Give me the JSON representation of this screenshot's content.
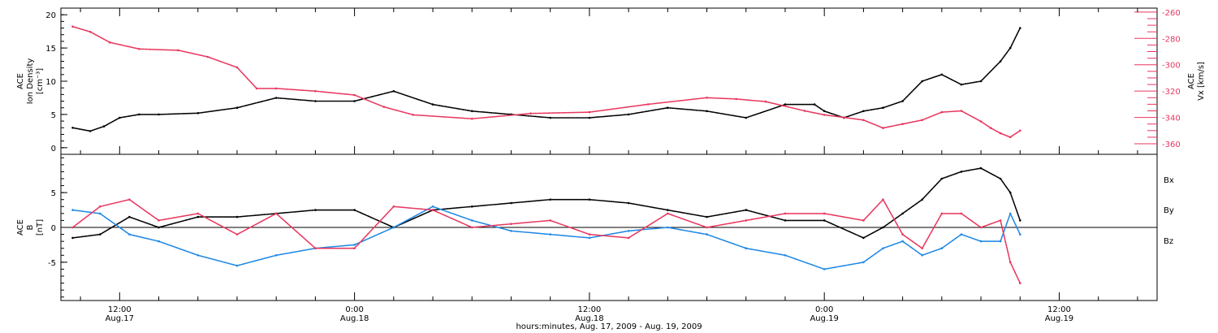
{
  "figure": {
    "xlabel": "hours:minutes, Aug. 17, 2009 - Aug. 19, 2009"
  },
  "colors": {
    "black": "#000000",
    "pink": "#e8375f",
    "blue": "#1e88e5"
  },
  "chart_data": [
    {
      "type": "scatter",
      "panel": "top",
      "ylabel_lines": [
        "ACE",
        "Ion Density",
        "[cm⁻³]"
      ],
      "ylim": [
        -1,
        21
      ],
      "yticks": [
        "0",
        "5",
        "10",
        "15",
        "20"
      ],
      "y2label_lines": [
        "ACE",
        "Vx [km/s]"
      ],
      "y2lim": [
        -368,
        -257
      ],
      "y2ticks": [
        "-260",
        "-280",
        "-300",
        "-320",
        "-340",
        "-360"
      ],
      "series": [
        {
          "axis": "left",
          "color": "#000000",
          "x": [
            9.6,
            10.5,
            11.2,
            12.0,
            13.0,
            14.0,
            16.0,
            18.0,
            20.0,
            22.0,
            24.0,
            26.0,
            28.0,
            30.0,
            32.0,
            34.0,
            36.0,
            38.0,
            40.0,
            42.0,
            44.0,
            46.0,
            47.5,
            48.0,
            49.0,
            50.0,
            51.0,
            52.0,
            53.0,
            54.0,
            55.0,
            56.0,
            57.0,
            57.5,
            58.0
          ],
          "values": [
            3,
            2.5,
            3.2,
            4.5,
            5,
            5,
            5.2,
            6,
            7.5,
            7,
            7,
            8.5,
            6.5,
            5.5,
            5,
            4.5,
            4.5,
            5,
            6,
            5.5,
            4.5,
            6.5,
            6.5,
            5.5,
            4.5,
            5.5,
            6,
            7,
            10,
            11,
            9.5,
            10,
            13,
            15,
            18
          ]
        },
        {
          "axis": "right",
          "color": "#e8375f",
          "x": [
            9.6,
            10.5,
            11.5,
            13.0,
            15.0,
            16.5,
            18.0,
            19.0,
            20.0,
            22.0,
            24.0,
            25.5,
            27.0,
            30.0,
            33.0,
            36.0,
            39.0,
            42.0,
            43.5,
            45.0,
            47.0,
            48.0,
            49.0,
            50.0,
            51.0,
            52.0,
            53.0,
            54.0,
            55.0,
            56.0,
            56.5,
            57.0,
            57.5,
            58.0
          ],
          "values": [
            -271,
            -275,
            -283,
            -288,
            -289,
            -294,
            -302,
            -318,
            -318,
            -320,
            -323,
            -332,
            -338,
            -341,
            -337,
            -336,
            -330,
            -325,
            -326,
            -328,
            -335,
            -338,
            -340,
            -342,
            -348,
            -345,
            -342,
            -336,
            -335,
            -343,
            -348,
            -352,
            -355,
            -350
          ]
        }
      ]
    },
    {
      "type": "scatter",
      "panel": "bottom",
      "ylabel_lines": [
        "ACE",
        "B",
        "[nT]"
      ],
      "ylim": [
        -10.5,
        10.5
      ],
      "yticks": [
        "-5",
        "0",
        "5"
      ],
      "legend": [
        "Bx",
        "By",
        "Bz"
      ],
      "series": [
        {
          "name": "Bx",
          "color": "#000000",
          "x": [
            9.6,
            11.0,
            12.5,
            14.0,
            16.0,
            18.0,
            20.0,
            22.0,
            24.0,
            26.0,
            28.0,
            30.0,
            32.0,
            34.0,
            36.0,
            38.0,
            40.0,
            42.0,
            44.0,
            46.0,
            48.0,
            50.0,
            51.0,
            52.0,
            53.0,
            54.0,
            55.0,
            56.0,
            57.0,
            57.5,
            58.0
          ],
          "values": [
            -1.5,
            -1,
            1.5,
            0,
            1.5,
            1.5,
            2,
            2.5,
            2.5,
            0,
            2.5,
            3,
            3.5,
            4,
            4,
            3.5,
            2.5,
            1.5,
            2.5,
            1,
            1,
            -1.5,
            0,
            2,
            4,
            7,
            8,
            8.5,
            7,
            5,
            1
          ]
        },
        {
          "name": "By",
          "color": "#1e88e5",
          "x": [
            9.6,
            11.0,
            12.5,
            14.0,
            16.0,
            18.0,
            20.0,
            22.0,
            24.0,
            26.0,
            28.0,
            30.0,
            32.0,
            34.0,
            36.0,
            38.0,
            40.0,
            42.0,
            44.0,
            46.0,
            48.0,
            50.0,
            51.0,
            52.0,
            53.0,
            54.0,
            55.0,
            56.0,
            57.0,
            57.5,
            58.0
          ],
          "values": [
            2.5,
            2,
            -1,
            -2,
            -4,
            -5.5,
            -4,
            -3,
            -2.5,
            0,
            3,
            1,
            -0.5,
            -1,
            -1.5,
            -0.5,
            0,
            -1,
            -3,
            -4,
            -6,
            -5,
            -3,
            -2,
            -4,
            -3,
            -1,
            -2,
            -2,
            2,
            -1
          ]
        },
        {
          "name": "Bz",
          "color": "#e8375f",
          "x": [
            9.6,
            11.0,
            12.5,
            14.0,
            16.0,
            18.0,
            20.0,
            22.0,
            24.0,
            26.0,
            28.0,
            30.0,
            32.0,
            34.0,
            36.0,
            38.0,
            40.0,
            42.0,
            44.0,
            46.0,
            48.0,
            50.0,
            51.0,
            52.0,
            53.0,
            54.0,
            55.0,
            56.0,
            57.0,
            57.5,
            58.0
          ],
          "values": [
            0,
            3,
            4,
            1,
            2,
            -1,
            2,
            -3,
            -3,
            3,
            2.5,
            0,
            0.5,
            1,
            -1,
            -1.5,
            2,
            0,
            1,
            2,
            2,
            1,
            4,
            -1,
            -3,
            2,
            2,
            0,
            1,
            -5,
            -8
          ]
        }
      ]
    }
  ],
  "x_axis": {
    "ticks": [
      {
        "time": "12:00",
        "date": "Aug.17"
      },
      {
        "time": "0:00",
        "date": "Aug.18"
      },
      {
        "time": "12:00",
        "date": "Aug.18"
      },
      {
        "time": "0:00",
        "date": "Aug.19"
      },
      {
        "time": "12:00",
        "date": "Aug.19"
      }
    ]
  }
}
